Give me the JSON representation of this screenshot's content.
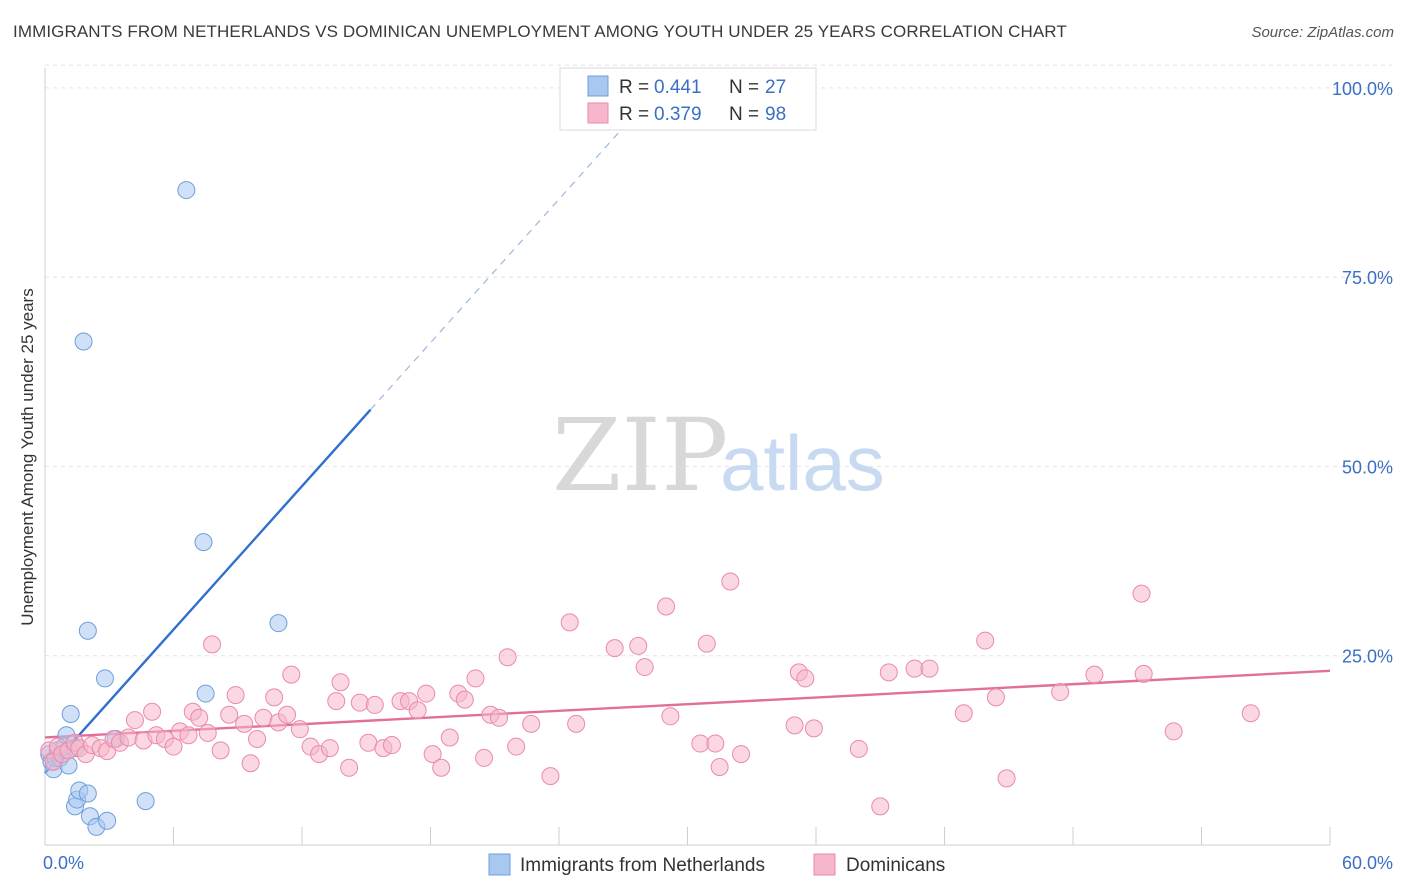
{
  "title": "IMMIGRANTS FROM NETHERLANDS VS DOMINICAN UNEMPLOYMENT AMONG YOUTH UNDER 25 YEARS CORRELATION CHART",
  "source": "Source: ZipAtlas.com",
  "watermark": {
    "zip": "ZIP",
    "atlas": "atlas"
  },
  "legend_top": {
    "r_label": "R =",
    "n_label": "N =",
    "entries": [
      {
        "r": "0.441",
        "n": "27",
        "color": "#a9c8f0"
      },
      {
        "r": "0.379",
        "n": "98",
        "color": "#f6b6cb"
      }
    ]
  },
  "chart_data": {
    "type": "scatter",
    "title": "IMMIGRANTS FROM NETHERLANDS VS DOMINICAN UNEMPLOYMENT AMONG YOUTH UNDER 25 YEARS CORRELATION CHART",
    "xlabel": "",
    "ylabel": "Unemployment Among Youth under 25 years",
    "xlim": [
      0,
      60
    ],
    "ylim": [
      0,
      105
    ],
    "x_tick_labels": [
      "0.0%",
      "60.0%"
    ],
    "y_ticks": [
      25,
      50,
      75,
      100
    ],
    "y_tick_labels": [
      "25.0%",
      "50.0%",
      "75.0%",
      "100.0%"
    ],
    "grid": true,
    "legend_position": "top-center",
    "series": [
      {
        "name": "Immigrants from Netherlands",
        "color": "#a9c8f0",
        "stroke": "#6f9edb",
        "trend_color": "#2f6fd0",
        "trend": {
          "x0": 0,
          "y0": 9.5,
          "x1": 15.2,
          "y1": 57.5,
          "dash_to_x": 26.8
        },
        "points": [
          [
            0.2,
            12.0
          ],
          [
            0.3,
            11.0
          ],
          [
            0.4,
            10.0
          ],
          [
            0.5,
            11.5
          ],
          [
            0.6,
            12.5
          ],
          [
            0.7,
            11.5
          ],
          [
            0.9,
            13.0
          ],
          [
            1.0,
            14.5
          ],
          [
            1.1,
            10.5
          ],
          [
            1.2,
            17.3
          ],
          [
            1.4,
            12.8
          ],
          [
            1.4,
            5.1
          ],
          [
            1.5,
            6.0
          ],
          [
            1.6,
            7.2
          ],
          [
            1.8,
            66.5
          ],
          [
            2.0,
            6.8
          ],
          [
            2.0,
            28.3
          ],
          [
            2.1,
            3.8
          ],
          [
            2.4,
            2.4
          ],
          [
            2.8,
            22.0
          ],
          [
            2.9,
            3.2
          ],
          [
            3.3,
            14.0
          ],
          [
            4.7,
            5.8
          ],
          [
            6.6,
            86.5
          ],
          [
            7.4,
            40.0
          ],
          [
            7.5,
            20.0
          ],
          [
            10.9,
            29.3
          ]
        ]
      },
      {
        "name": "Dominicans",
        "color": "#f6b6cb",
        "stroke": "#ea8aa9",
        "trend_color": "#e0709a",
        "trend": {
          "x0": 0,
          "y0": 14.2,
          "x1": 60,
          "y1": 23.0
        },
        "points": [
          [
            0.2,
            12.5
          ],
          [
            0.4,
            11.0
          ],
          [
            0.6,
            13.0
          ],
          [
            0.8,
            12.0
          ],
          [
            1.1,
            12.5
          ],
          [
            1.4,
            13.5
          ],
          [
            1.6,
            12.8
          ],
          [
            1.9,
            12.0
          ],
          [
            2.2,
            13.2
          ],
          [
            2.6,
            12.8
          ],
          [
            2.9,
            12.4
          ],
          [
            3.2,
            14.0
          ],
          [
            3.5,
            13.5
          ],
          [
            3.9,
            14.2
          ],
          [
            4.2,
            16.5
          ],
          [
            4.6,
            13.8
          ],
          [
            5.0,
            17.6
          ],
          [
            5.2,
            14.5
          ],
          [
            5.6,
            14.0
          ],
          [
            6.0,
            13.0
          ],
          [
            6.3,
            15.0
          ],
          [
            6.7,
            14.5
          ],
          [
            6.9,
            17.6
          ],
          [
            7.2,
            16.8
          ],
          [
            7.6,
            14.8
          ],
          [
            7.8,
            26.5
          ],
          [
            8.2,
            12.5
          ],
          [
            8.6,
            17.2
          ],
          [
            8.9,
            19.8
          ],
          [
            9.3,
            16.0
          ],
          [
            9.6,
            10.8
          ],
          [
            9.9,
            14.0
          ],
          [
            10.2,
            16.8
          ],
          [
            10.7,
            19.5
          ],
          [
            10.9,
            16.2
          ],
          [
            11.3,
            17.2
          ],
          [
            11.5,
            22.5
          ],
          [
            11.9,
            15.3
          ],
          [
            12.4,
            13.0
          ],
          [
            12.8,
            12.0
          ],
          [
            13.3,
            12.8
          ],
          [
            13.6,
            19.0
          ],
          [
            13.8,
            21.5
          ],
          [
            14.2,
            10.2
          ],
          [
            14.7,
            18.8
          ],
          [
            15.1,
            13.5
          ],
          [
            15.4,
            18.5
          ],
          [
            15.8,
            12.8
          ],
          [
            16.2,
            13.2
          ],
          [
            16.6,
            19.0
          ],
          [
            17.0,
            19.0
          ],
          [
            17.4,
            17.8
          ],
          [
            17.8,
            20.0
          ],
          [
            18.1,
            12.0
          ],
          [
            18.5,
            10.2
          ],
          [
            18.9,
            14.2
          ],
          [
            19.3,
            20.0
          ],
          [
            19.6,
            19.2
          ],
          [
            20.1,
            22.0
          ],
          [
            20.5,
            11.5
          ],
          [
            20.8,
            17.2
          ],
          [
            21.2,
            16.8
          ],
          [
            21.6,
            24.8
          ],
          [
            22.0,
            13.0
          ],
          [
            22.7,
            16.0
          ],
          [
            23.6,
            9.1
          ],
          [
            24.5,
            29.4
          ],
          [
            24.8,
            16.0
          ],
          [
            26.6,
            26.0
          ],
          [
            27.7,
            26.3
          ],
          [
            28.0,
            23.5
          ],
          [
            29.0,
            31.5
          ],
          [
            29.2,
            17.0
          ],
          [
            30.6,
            13.4
          ],
          [
            30.9,
            26.6
          ],
          [
            31.3,
            13.4
          ],
          [
            31.5,
            10.3
          ],
          [
            32.0,
            34.8
          ],
          [
            32.5,
            12.0
          ],
          [
            35.0,
            15.8
          ],
          [
            35.2,
            22.8
          ],
          [
            35.5,
            22.0
          ],
          [
            35.9,
            15.4
          ],
          [
            38.0,
            12.7
          ],
          [
            39.0,
            5.1
          ],
          [
            39.4,
            22.8
          ],
          [
            40.6,
            23.3
          ],
          [
            41.3,
            23.3
          ],
          [
            42.9,
            17.4
          ],
          [
            43.9,
            27.0
          ],
          [
            44.4,
            19.5
          ],
          [
            44.9,
            8.8
          ],
          [
            47.4,
            20.2
          ],
          [
            49.0,
            22.5
          ],
          [
            51.2,
            33.2
          ],
          [
            51.3,
            22.6
          ],
          [
            52.7,
            15.0
          ],
          [
            56.3,
            17.4
          ]
        ]
      }
    ]
  }
}
